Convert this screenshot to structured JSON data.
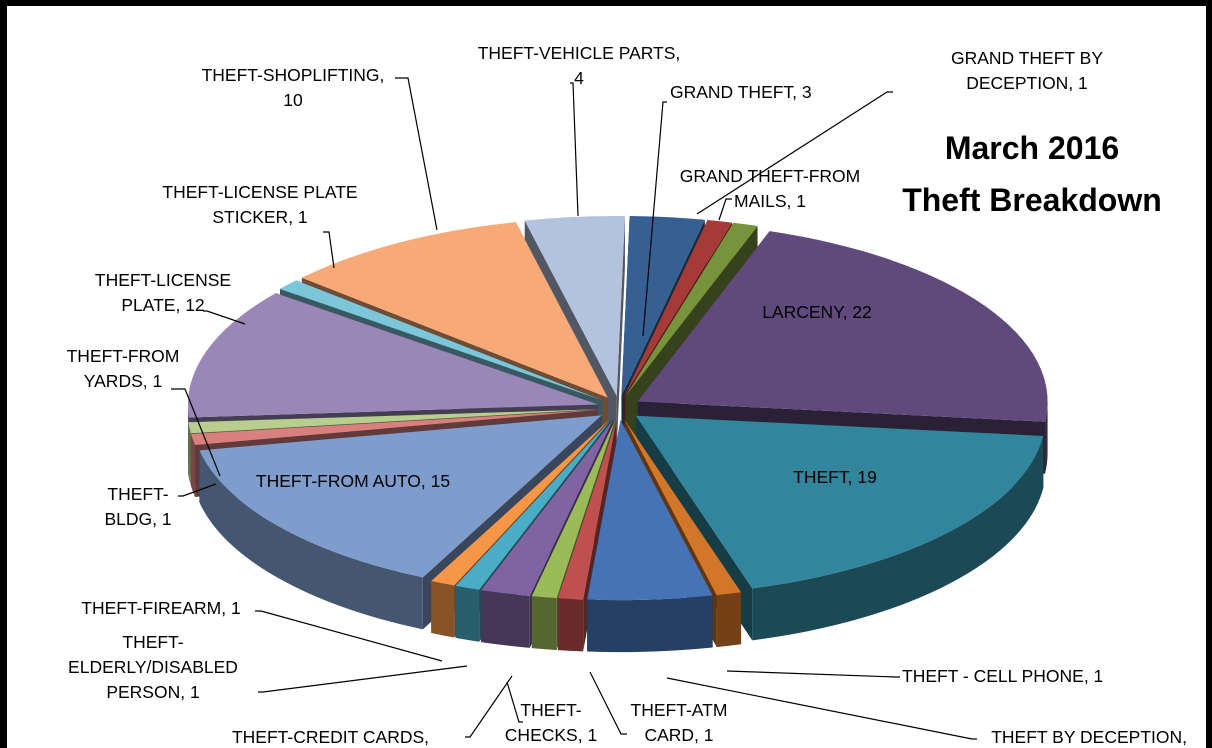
{
  "chart_data": {
    "type": "pie",
    "style": "3d-exploded",
    "title_lines": [
      "March 2016",
      "Theft Breakdown"
    ],
    "slices": [
      {
        "label_lines": [
          "GRAND THEFT, 3"
        ],
        "value": 3,
        "color": "#376092"
      },
      {
        "label_lines": [
          "GRAND THEFT BY",
          "DECEPTION, 1"
        ],
        "value": 1,
        "color": "#A63A37"
      },
      {
        "label_lines": [
          "GRAND THEFT-FROM",
          "MAILS, 1"
        ],
        "value": 1,
        "color": "#77933C"
      },
      {
        "label_lines": [
          "LARCENY, 22"
        ],
        "value": 22,
        "color": "#604A7B"
      },
      {
        "label_lines": [
          "THEFT, 19"
        ],
        "value": 19,
        "color": "#31859C"
      },
      {
        "label_lines": [
          "THEFT - CELL PHONE, 1"
        ],
        "value": 1,
        "color": "#D2772A"
      },
      {
        "label_lines": [
          "THEFT BY DECEPTION,"
        ],
        "value": 5,
        "color": "#4573B5"
      },
      {
        "label_lines": [
          "THEFT-ATM",
          "CARD, 1"
        ],
        "value": 1,
        "color": "#C0504D"
      },
      {
        "label_lines": [
          "THEFT-",
          "CHECKS, 1"
        ],
        "value": 1,
        "color": "#9BBB59"
      },
      {
        "label_lines": [
          "THEFT-CREDIT CARDS,"
        ],
        "value": 2,
        "color": "#8064A2"
      },
      {
        "label_lines": [
          "THEFT-",
          "ELDERLY/DISABLED",
          "PERSON, 1"
        ],
        "value": 1,
        "color": "#4BACC6"
      },
      {
        "label_lines": [
          "THEFT-FIREARM, 1"
        ],
        "value": 1,
        "color": "#F79646"
      },
      {
        "label_lines": [
          "THEFT-FROM AUTO, 15"
        ],
        "value": 15,
        "color": "#7E9CCC"
      },
      {
        "label_lines": [
          "THEFT-",
          "BLDG, 1"
        ],
        "value": 1,
        "color": "#D9807F"
      },
      {
        "label_lines": [
          "THEFT-FROM",
          "YARDS, 1"
        ],
        "value": 1,
        "color": "#B7CE8F"
      },
      {
        "label_lines": [
          "THEFT-LICENSE",
          "PLATE, 12"
        ],
        "value": 12,
        "color": "#9A87B8"
      },
      {
        "label_lines": [
          "THEFT-LICENSE PLATE",
          "STICKER, 1"
        ],
        "value": 1,
        "color": "#7CC6DA"
      },
      {
        "label_lines": [
          "THEFT-SHOPLIFTING,",
          "10"
        ],
        "value": 10,
        "color": "#F7A977"
      },
      {
        "label_lines": [
          "THEFT-VEHICLE PARTS,",
          "4"
        ],
        "value": 4,
        "color": "#B3C3DD"
      }
    ],
    "legend": "none"
  }
}
